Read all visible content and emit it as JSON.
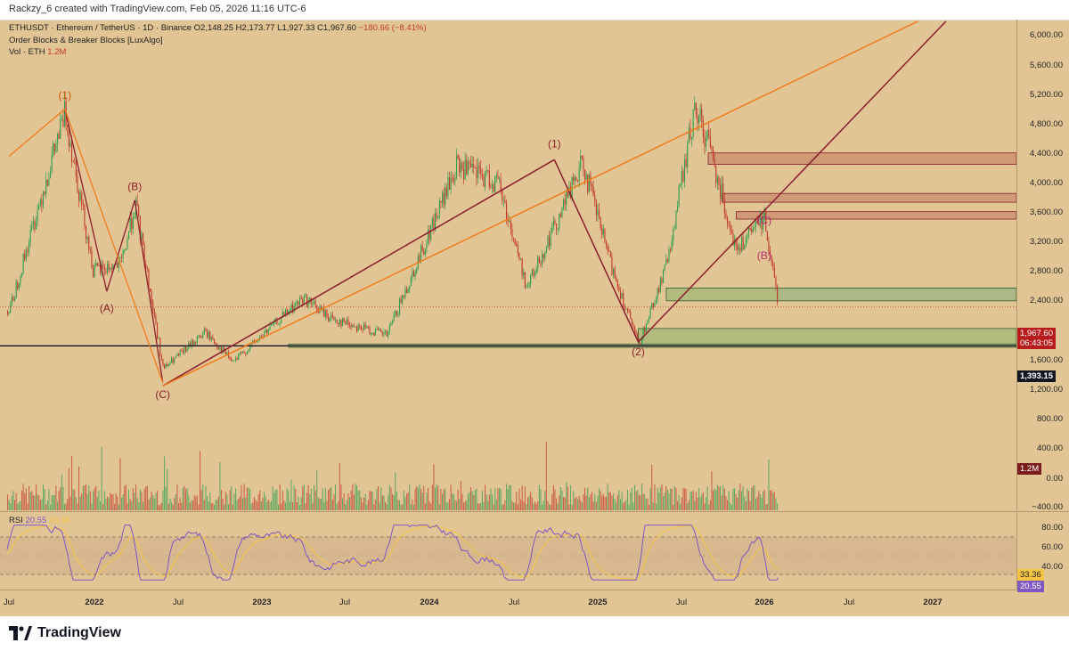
{
  "header": {
    "credit": "Rackzy_6 created with TradingView.com, Feb 05, 2026 11:16 UTC-6"
  },
  "legend": {
    "symbol": "ETHUSDT · Ethereum / TetherUS · 1D · Binance",
    "ohlc": "O2,148.25 H2,173.77 L1,927.33 C1,967.60",
    "change": "−180.66 (−8.41%)",
    "indicator": "Order Blocks & Breaker Blocks [LuxAlgo]",
    "volume_label": "Vol · ETH",
    "volume_value": "1.2M",
    "rsi_label": "RSI",
    "rsi_value": "20.55",
    "rsi_ma_value": "33.36"
  },
  "price_axis": {
    "ticks": [
      "6,000.00",
      "5,600.00",
      "5,200.00",
      "4,800.00",
      "4,400.00",
      "4,000.00",
      "3,600.00",
      "3,200.00",
      "2,800.00",
      "2,400.00",
      "1,600.00",
      "1,200.00",
      "800.00",
      "400.00",
      "0.00",
      "−400.00"
    ],
    "last_price": "1,967.60",
    "countdown": "06:43:05",
    "level_price": "1,393.15",
    "volume_badge": "1.2M"
  },
  "rsi_axis": {
    "ticks": [
      "80.00",
      "60.00",
      "40.00"
    ],
    "ma_badge": "33.36",
    "rsi_badge": "20.55"
  },
  "time_axis": {
    "labels": [
      "Jul",
      "2022",
      "Jul",
      "2023",
      "Jul",
      "2024",
      "Jul",
      "2025",
      "Jul",
      "2026",
      "Jul",
      "2027"
    ]
  },
  "footer": {
    "logo_text": "TradingView"
  },
  "annotations": {
    "labels": [
      "(1)",
      "(B)",
      "(A)",
      "(C)",
      "(1)",
      "(2)",
      "(B)",
      "(C)"
    ]
  },
  "colors": {
    "background": "#e2c594",
    "candle_up": "#2e9e4f",
    "candle_down": "#c0392b",
    "channel": "#8b1e2c",
    "trendline": "#f07b1c",
    "supply_zone": "#c98b6e",
    "demand_zone": "#a9b77a",
    "breaker_zone": "#b7b9c9",
    "rsi_line": "#7e57c2",
    "rsi_band": "#cfae8a",
    "wave_label": "#8b1e2c",
    "wave_label_orange": "#d35400"
  },
  "chart_data": {
    "type": "line",
    "symbol": "ETHUSDT",
    "timeframe": "1D",
    "x_range": [
      "2021-07",
      "2027-03"
    ],
    "ylim": [
      -400,
      6200
    ],
    "scale": "log-like price scale",
    "grid": false,
    "price_path": {
      "x": [
        "2021-07",
        "2021-09",
        "2021-11",
        "2022-01",
        "2022-03",
        "2022-04",
        "2022-06",
        "2022-09",
        "2022-11",
        "2023-04",
        "2023-06",
        "2023-10",
        "2024-03",
        "2024-06",
        "2024-08",
        "2024-12",
        "2025-02",
        "2025-04",
        "2025-06",
        "2025-08",
        "2025-09",
        "2025-11",
        "2026-01",
        "2026-02"
      ],
      "y": [
        1900,
        3400,
        4850,
        2500,
        2600,
        3500,
        1050,
        1600,
        1150,
        2100,
        1800,
        1550,
        4050,
        3800,
        2250,
        4100,
        2600,
        1400,
        2600,
        4900,
        4400,
        2800,
        3300,
        1967.6
      ]
    },
    "series": [
      {
        "name": "Vol · ETH",
        "last": 1.2
      },
      {
        "name": "RSI",
        "last": 20.55,
        "ma": 33.36
      }
    ],
    "levels": {
      "last_price": 1967.6,
      "horizontal_line": 1393.15
    },
    "zones": [
      {
        "type": "supply",
        "top": 4250,
        "bottom": 4080,
        "from": "2025-09"
      },
      {
        "type": "supply",
        "top": 3650,
        "bottom": 3520,
        "from": "2025-10"
      },
      {
        "type": "supply",
        "top": 3380,
        "bottom": 3270,
        "from": "2025-11"
      },
      {
        "type": "breaker",
        "top": 2250,
        "bottom": 2060,
        "from": "2026-02"
      },
      {
        "type": "demand",
        "top": 2250,
        "bottom": 2060,
        "from": "2025-06"
      },
      {
        "type": "demand",
        "top": 1650,
        "bottom": 1400,
        "from": "2025-04"
      },
      {
        "type": "demand",
        "top": 1420,
        "bottom": 1370,
        "from": "2023-03"
      }
    ],
    "rsi_levels": [
      70,
      50,
      30
    ]
  }
}
